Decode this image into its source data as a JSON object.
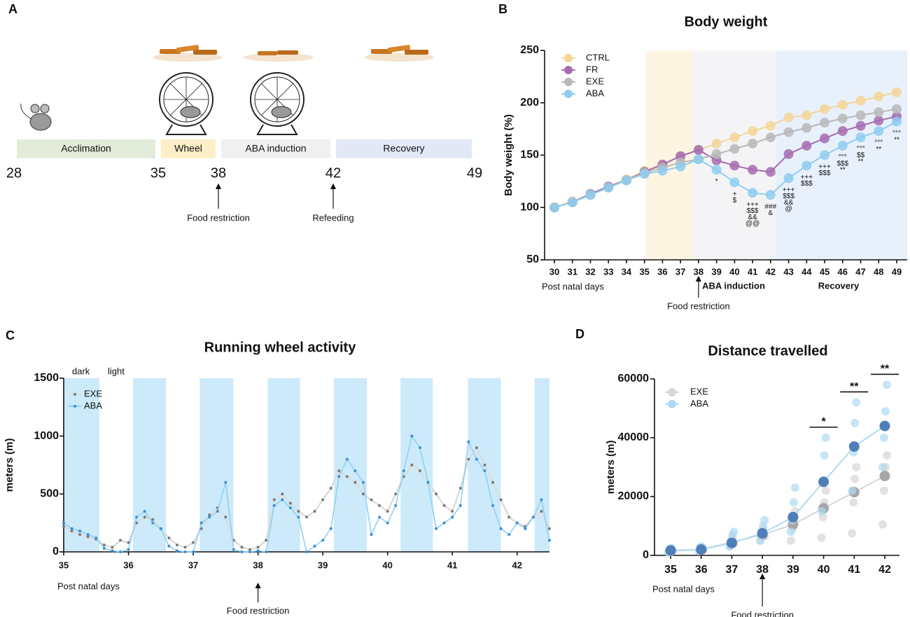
{
  "panel_labels": [
    "A",
    "B",
    "C",
    "D"
  ],
  "timeline": {
    "ticks": [
      28,
      35,
      38,
      42,
      49
    ],
    "phases": [
      {
        "label": "Acclimation",
        "color": "#e2ecd9"
      },
      {
        "label": "Wheel",
        "color": "#fcefc7"
      },
      {
        "label": "ABA induction",
        "color": "#f0f0f0"
      },
      {
        "label": "Recovery",
        "color": "#e2e8f6"
      }
    ],
    "events": [
      "Food restriction",
      "Refeeding"
    ]
  },
  "chart_data": [
    {
      "type": "line",
      "title": "Body weight",
      "y_label": "Body weight (%)",
      "x_label": "Post natal days",
      "categories": [
        30,
        31,
        32,
        33,
        34,
        35,
        36,
        37,
        38,
        39,
        40,
        41,
        42,
        43,
        44,
        45,
        46,
        47,
        48,
        49
      ],
      "ylim": [
        50,
        250
      ],
      "yticks": [
        50,
        100,
        150,
        200,
        250
      ],
      "phase_labels": [
        "ABA induction",
        "Recovery"
      ],
      "annotation": "Food restriction",
      "series": [
        {
          "name": "CTRL",
          "color": "#f3d596",
          "values": [
            100,
            106,
            112,
            120,
            127,
            135,
            141,
            149,
            155,
            161,
            167,
            173,
            178,
            186,
            188,
            194,
            198,
            202,
            206,
            210
          ]
        },
        {
          "name": "FR",
          "color": "#a66bb0",
          "values": [
            100,
            105,
            113,
            120,
            126,
            134,
            141,
            149,
            155,
            145,
            140,
            136,
            134,
            151,
            159,
            166,
            173,
            178,
            183,
            187
          ]
        },
        {
          "name": "EXE",
          "color": "#b8b8b8",
          "values": [
            100,
            105,
            112,
            119,
            126,
            133,
            138,
            143,
            146,
            151,
            156,
            161,
            167,
            172,
            176,
            181,
            185,
            188,
            191,
            194
          ]
        },
        {
          "name": "ABA",
          "color": "#8ecdf0",
          "values": [
            100,
            105,
            112,
            119,
            126,
            132,
            135,
            139,
            146,
            136,
            124,
            114,
            112,
            128,
            140,
            150,
            159,
            167,
            173,
            182
          ]
        }
      ],
      "significance": [
        null,
        null,
        null,
        null,
        null,
        null,
        null,
        null,
        null,
        [
          "*"
        ],
        [
          "+",
          "$"
        ],
        [
          "+++",
          "$$$",
          "&&",
          "@@"
        ],
        [
          "###",
          "&"
        ],
        [
          "+++",
          "$$$",
          "&&",
          "@"
        ],
        [
          "+++",
          "$$$"
        ],
        [
          "+++",
          "$$$"
        ],
        [
          "°°°",
          "$$$",
          "**"
        ],
        [
          "°°°",
          "$$",
          "**"
        ],
        [
          "°°°",
          "**"
        ],
        [
          "°°°",
          "**"
        ]
      ]
    },
    {
      "type": "scatter",
      "title": "Running wheel activity",
      "y_label": "meters (m)",
      "x_label": "Post natal days",
      "legend_phases": [
        "dark",
        "light"
      ],
      "dark_periods": [
        [
          35,
          35.55
        ],
        [
          36.07,
          36.58
        ],
        [
          37.1,
          37.62
        ],
        [
          38.15,
          38.65
        ],
        [
          39.17,
          39.68
        ],
        [
          40.2,
          40.7
        ],
        [
          41.24,
          41.75
        ],
        [
          42.27,
          42.5
        ]
      ],
      "annotation": "Food restriction",
      "xlim": [
        35,
        42.5
      ],
      "xticks": [
        35,
        36,
        37,
        38,
        39,
        40,
        41,
        42
      ],
      "ylim": [
        0,
        1500
      ],
      "yticks": [
        0,
        500,
        1000,
        1500
      ],
      "x": [
        35,
        35.125,
        35.25,
        35.375,
        35.5,
        35.625,
        35.75,
        35.875,
        36,
        36.125,
        36.25,
        36.375,
        36.5,
        36.625,
        36.75,
        36.875,
        37,
        37.125,
        37.25,
        37.375,
        37.5,
        37.625,
        37.75,
        37.875,
        38,
        38.125,
        38.25,
        38.375,
        38.5,
        38.625,
        38.75,
        38.875,
        39,
        39.125,
        39.25,
        39.375,
        39.5,
        39.625,
        39.75,
        39.875,
        40,
        40.125,
        40.25,
        40.375,
        40.5,
        40.625,
        40.75,
        40.875,
        41,
        41.125,
        41.25,
        41.375,
        41.5,
        41.625,
        41.75,
        41.875,
        42,
        42.125,
        42.25,
        42.375,
        42.5
      ],
      "series": [
        {
          "name": "EXE",
          "color": "#dcdcdc",
          "point_color": "#7a7a7a",
          "values": [
            220,
            180,
            150,
            130,
            110,
            60,
            40,
            100,
            80,
            250,
            300,
            280,
            200,
            120,
            60,
            40,
            80,
            200,
            320,
            380,
            300,
            100,
            40,
            20,
            40,
            100,
            450,
            500,
            420,
            350,
            300,
            350,
            450,
            550,
            700,
            650,
            600,
            500,
            450,
            400,
            350,
            500,
            650,
            750,
            700,
            600,
            500,
            400,
            350,
            550,
            800,
            900,
            750,
            600,
            450,
            300,
            250,
            220,
            300,
            350,
            200
          ]
        },
        {
          "name": "ABA",
          "color": "#8fd0f5",
          "point_color": "#3a8fd8",
          "values": [
            250,
            200,
            180,
            150,
            120,
            30,
            10,
            0,
            20,
            300,
            350,
            250,
            200,
            50,
            10,
            0,
            0,
            250,
            300,
            350,
            600,
            20,
            0,
            0,
            10,
            0,
            400,
            450,
            380,
            300,
            0,
            50,
            100,
            200,
            650,
            800,
            700,
            600,
            150,
            300,
            250,
            400,
            700,
            1000,
            900,
            600,
            200,
            250,
            300,
            400,
            950,
            800,
            700,
            400,
            200,
            150,
            250,
            200,
            300,
            450,
            100
          ]
        }
      ]
    },
    {
      "type": "line",
      "title": "Distance travelled",
      "y_label": "meters (m)",
      "x_label": "Post natal days",
      "annotation": "Food restriction",
      "categories": [
        35,
        36,
        37,
        38,
        39,
        40,
        41,
        42
      ],
      "ylim": [
        0,
        60000
      ],
      "yticks": [
        0,
        20000,
        40000,
        60000
      ],
      "series": [
        {
          "name": "EXE",
          "color": "#d6d6d6",
          "point_color": "#a6a6a6",
          "values": [
            1500,
            2000,
            4500,
            7000,
            10500,
            16000,
            21500,
            27000
          ],
          "points": [
            [
              1200,
              1800,
              2000,
              1500
            ],
            [
              1500,
              2500,
              2200,
              1800
            ],
            [
              3000,
              5000,
              6000,
              4000
            ],
            [
              5000,
              8000,
              9000,
              6500
            ],
            [
              5000,
              9000,
              12000,
              15000
            ],
            [
              6000,
              13000,
              18000,
              22000
            ],
            [
              7500,
              18000,
              26000,
              30000
            ],
            [
              10500,
              22000,
              30000,
              34000
            ]
          ]
        },
        {
          "name": "ABA",
          "color": "#aedaf4",
          "point_color": "#4f7fb8",
          "values": [
            1700,
            2000,
            4200,
            7500,
            13000,
            25000,
            37000,
            44000
          ],
          "points": [
            [
              1000,
              2000,
              2500,
              1500
            ],
            [
              1500,
              2800,
              3000,
              2000
            ],
            [
              3000,
              5000,
              7000,
              8000
            ],
            [
              5000,
              8000,
              10000,
              12000
            ],
            [
              8000,
              12000,
              18000,
              23000
            ],
            [
              15000,
              25000,
              34000,
              40000
            ],
            [
              22000,
              35000,
              45000,
              52000
            ],
            [
              30000,
              40000,
              49000,
              58000
            ]
          ]
        }
      ],
      "significance": [
        null,
        null,
        null,
        null,
        null,
        "*",
        "**",
        "**"
      ]
    }
  ]
}
